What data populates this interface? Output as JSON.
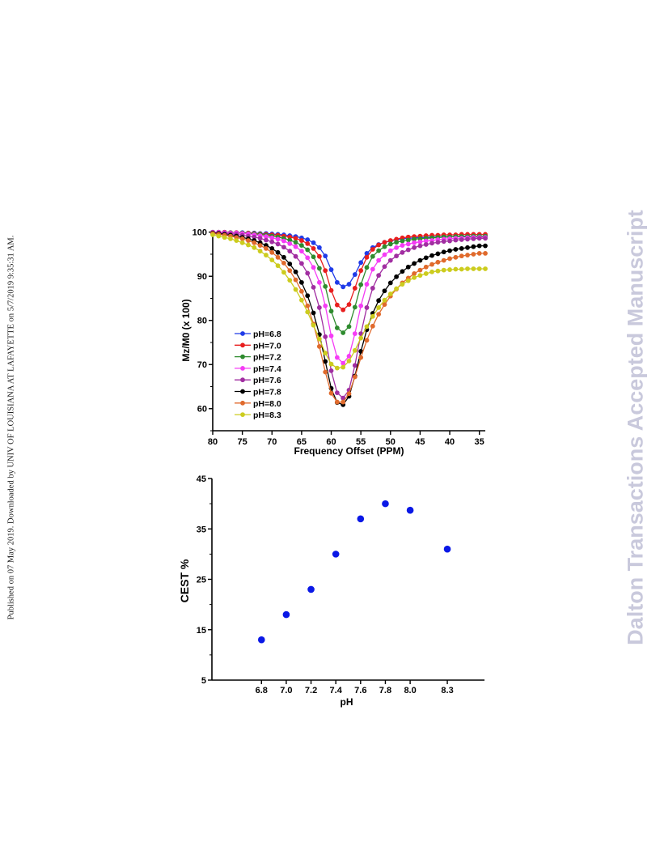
{
  "side_note": "Published on 07 May 2019. Downloaded by UNIV OF LOUISIANA AT LAFAYETTE on 5/7/2019 9:35:31 AM.",
  "watermark": "Dalton Transactions Accepted Manuscript",
  "chart_data": [
    {
      "type": "line",
      "xlabel": "Frequency Offset (PPM)",
      "ylabel": "Mz/M0 (x 100)",
      "xlim": [
        80,
        34
      ],
      "ylim": [
        55,
        100.5
      ],
      "xticks": [
        80,
        75,
        70,
        65,
        60,
        55,
        50,
        45,
        40,
        35
      ],
      "yticks": [
        60,
        70,
        80,
        90,
        100
      ],
      "x": [
        80,
        79,
        78,
        77,
        76,
        75,
        74,
        73,
        72,
        71,
        70,
        69,
        68,
        67,
        66,
        65,
        64,
        63,
        62,
        61,
        60,
        59,
        58,
        57,
        56,
        55,
        54,
        53,
        52,
        51,
        50,
        49,
        48,
        47,
        46,
        45,
        44,
        43,
        42,
        41,
        40,
        39,
        38,
        37,
        36,
        35,
        34
      ],
      "legend_position": "lower-left",
      "series": [
        {
          "name": "pH=6.8",
          "color": "#1f3be8",
          "values": [
            100,
            100,
            100,
            99.9,
            99.9,
            99.9,
            99.8,
            99.8,
            99.7,
            99.7,
            99.6,
            99.5,
            99.4,
            99.2,
            99,
            98.7,
            98.3,
            97.6,
            96.5,
            94.6,
            91.5,
            88.6,
            87.6,
            88.2,
            90.4,
            93.1,
            95.2,
            96.5,
            97.2,
            97.7,
            98,
            98.3,
            98.5,
            98.6,
            98.7,
            98.8,
            98.8,
            98.9,
            98.9,
            99,
            99,
            99,
            99.1,
            99.1,
            99.1,
            99.1,
            99.1
          ]
        },
        {
          "name": "pH=7.0",
          "color": "#e81e1e",
          "values": [
            100,
            100,
            100,
            99.9,
            99.9,
            99.8,
            99.8,
            99.7,
            99.6,
            99.5,
            99.4,
            99.3,
            99.1,
            98.9,
            98.6,
            98.1,
            97.4,
            96.3,
            94.5,
            91.3,
            86.8,
            83.5,
            82.4,
            83.6,
            87.3,
            91.3,
            94.3,
            96.1,
            97.1,
            97.7,
            98.1,
            98.4,
            98.7,
            98.9,
            99,
            99.1,
            99.2,
            99.3,
            99.3,
            99.4,
            99.4,
            99.4,
            99.5,
            99.5,
            99.5,
            99.5,
            99.5
          ]
        },
        {
          "name": "pH=7.2",
          "color": "#2e8b2e",
          "values": [
            100,
            100,
            99.9,
            99.9,
            99.8,
            99.8,
            99.7,
            99.6,
            99.5,
            99.3,
            99.1,
            98.9,
            98.6,
            98.2,
            97.7,
            97,
            96,
            94.4,
            91.8,
            87.7,
            82.1,
            78.3,
            77.2,
            78.6,
            83,
            88.1,
            92,
            94.5,
            95.8,
            96.7,
            97.3,
            97.7,
            98,
            98.2,
            98.4,
            98.5,
            98.6,
            98.7,
            98.8,
            98.9,
            98.9,
            99,
            99,
            99,
            99.1,
            99.1,
            99.1
          ]
        },
        {
          "name": "pH=7.4",
          "color": "#f53cf5",
          "values": [
            100,
            100,
            99.9,
            99.8,
            99.8,
            99.7,
            99.6,
            99.4,
            99.2,
            99,
            98.7,
            98.4,
            98,
            97.4,
            96.7,
            95.7,
            94.2,
            92,
            88.6,
            83.3,
            76.5,
            71.6,
            70.3,
            71.9,
            77,
            83.3,
            88.2,
            91.6,
            93.6,
            94.9,
            95.8,
            96.5,
            97,
            97.3,
            97.6,
            97.8,
            98,
            98.1,
            98.3,
            98.4,
            98.5,
            98.6,
            98.6,
            98.7,
            98.8,
            98.8,
            98.8
          ]
        },
        {
          "name": "pH=7.6",
          "color": "#a12ea1",
          "values": [
            99.9,
            99.8,
            99.7,
            99.6,
            99.5,
            99.3,
            99.1,
            98.9,
            98.6,
            98.2,
            97.8,
            97.3,
            96.6,
            95.7,
            94.5,
            92.9,
            90.7,
            87.5,
            82.9,
            76.3,
            68.6,
            63.6,
            62.4,
            64.2,
            69.8,
            77,
            82.9,
            87.3,
            90.2,
            92.2,
            93.6,
            94.6,
            95.4,
            96,
            96.5,
            96.9,
            97.2,
            97.5,
            97.7,
            97.9,
            98,
            98.2,
            98.3,
            98.4,
            98.5,
            98.6,
            98.6
          ]
        },
        {
          "name": "pH=7.8",
          "color": "#000000",
          "values": [
            99.8,
            99.7,
            99.5,
            99.3,
            99.1,
            98.8,
            98.5,
            98.1,
            97.6,
            97,
            96.3,
            95.4,
            94.3,
            92.8,
            91,
            88.6,
            85.6,
            81.7,
            76.8,
            70.7,
            64.6,
            61.4,
            60.9,
            62.8,
            67.4,
            73,
            77.9,
            81.6,
            84.5,
            86.7,
            88.5,
            89.9,
            91.1,
            92.1,
            92.9,
            93.6,
            94.2,
            94.7,
            95.1,
            95.5,
            95.8,
            96.1,
            96.3,
            96.5,
            96.7,
            96.9,
            96.9
          ]
        },
        {
          "name": "pH=8.0",
          "color": "#e06a2c",
          "values": [
            99.7,
            99.5,
            99.3,
            99.1,
            98.8,
            98.5,
            98.1,
            97.6,
            97,
            96.3,
            95.4,
            94.3,
            93,
            91.3,
            89.2,
            86.6,
            83.3,
            79.2,
            74.1,
            68.3,
            63.5,
            61.5,
            61.5,
            63.4,
            67.2,
            71.6,
            75.5,
            78.7,
            81.4,
            83.6,
            85.5,
            87.1,
            88.5,
            89.6,
            90.6,
            91.4,
            92.1,
            92.7,
            93.2,
            93.6,
            94,
            94.3,
            94.6,
            94.8,
            95,
            95.2,
            95.2
          ]
        },
        {
          "name": "pH=8.3",
          "color": "#cccc1e",
          "values": [
            99.4,
            99.1,
            98.8,
            98.5,
            98.1,
            97.6,
            97.1,
            96.5,
            95.7,
            94.8,
            93.7,
            92.4,
            90.9,
            89.1,
            87,
            84.6,
            81.9,
            78.9,
            75.8,
            72.6,
            70.1,
            69.2,
            69.4,
            70.8,
            73.2,
            76,
            78.6,
            80.9,
            82.9,
            84.6,
            86,
            87.2,
            88.2,
            89,
            89.7,
            90.2,
            90.6,
            91,
            91.2,
            91.4,
            91.5,
            91.6,
            91.6,
            91.7,
            91.7,
            91.7,
            91.7
          ]
        }
      ]
    },
    {
      "type": "scatter",
      "xlabel": "pH",
      "ylabel": "CEST %",
      "xlim": [
        6.4,
        8.6
      ],
      "ylim": [
        5,
        45
      ],
      "xticks": [
        "6.8",
        "7.0",
        "7.2",
        "7.4",
        "7.6",
        "7.8",
        "8.0",
        "8.3"
      ],
      "yticks": [
        5,
        15,
        25,
        35,
        45
      ],
      "point_color": "#0a18e6",
      "points": [
        {
          "x": 6.8,
          "y": 13
        },
        {
          "x": 7.0,
          "y": 18
        },
        {
          "x": 7.2,
          "y": 23
        },
        {
          "x": 7.4,
          "y": 30
        },
        {
          "x": 7.6,
          "y": 37
        },
        {
          "x": 7.8,
          "y": 40
        },
        {
          "x": 8.0,
          "y": 38.7
        },
        {
          "x": 8.3,
          "y": 31
        }
      ]
    }
  ]
}
